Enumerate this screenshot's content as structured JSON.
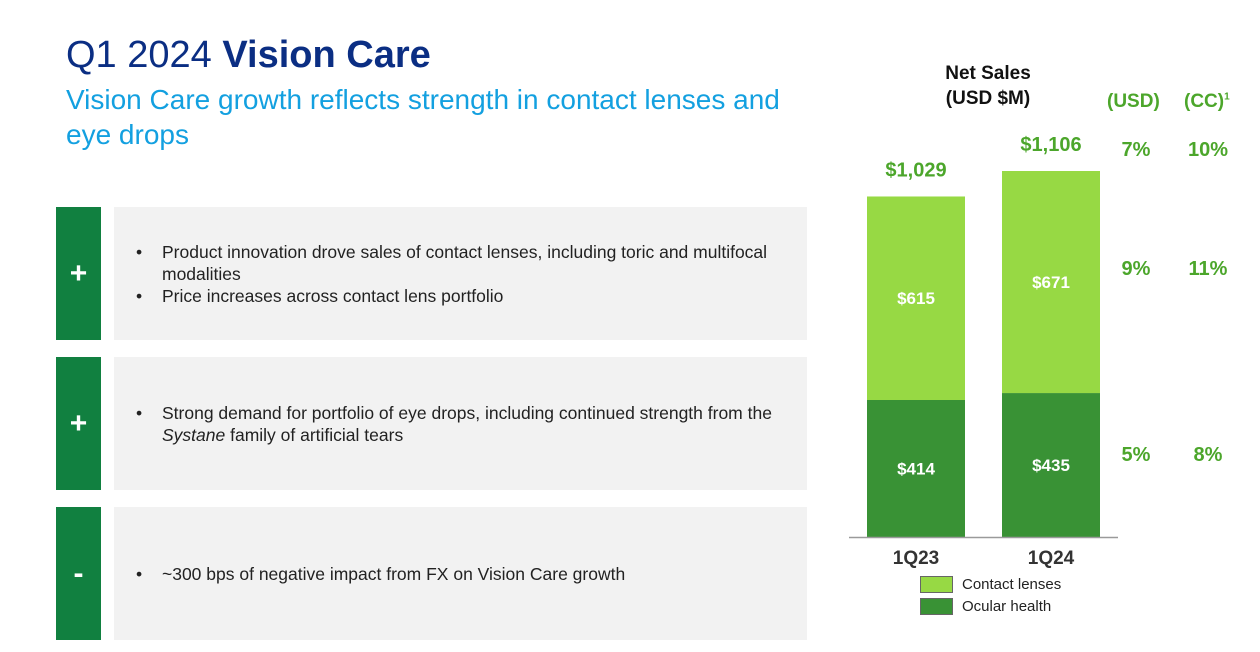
{
  "header": {
    "title_light": "Q1 2024",
    "title_bold": "Vision Care",
    "subtitle": "Vision Care growth reflects strength in contact lenses and eye drops"
  },
  "drivers": [
    {
      "sign": "+",
      "bullets": [
        "Product innovation drove sales of contact lenses, including toric and multifocal modalities",
        "Price increases across contact lens portfolio"
      ]
    },
    {
      "sign": "+",
      "bullets": [
        {
          "pre": "Strong demand for portfolio of eye drops, including continued strength from the ",
          "em": "Systane",
          "post": " family of artificial tears"
        }
      ]
    },
    {
      "sign": "-",
      "bullets": [
        "~300 bps of negative impact from FX on Vision Care growth"
      ]
    }
  ],
  "growth_table": {
    "headers": {
      "usd": "(USD)",
      "cc": "(CC)",
      "cc_footnote": "1"
    },
    "total": {
      "usd": "7%",
      "cc": "10%"
    },
    "contact_lenses": {
      "usd": "9%",
      "cc": "11%"
    },
    "ocular_health": {
      "usd": "5%",
      "cc": "8%"
    }
  },
  "bullet_char": "•",
  "colors": {
    "contact_lenses": "#97d944",
    "ocular_health": "#399235",
    "accent_green": "#4ca62b",
    "title_navy": "#0b2e83",
    "subtitle_blue": "#13a0e0",
    "sign_green": "#118040"
  },
  "chart_data": {
    "type": "bar",
    "stacked": true,
    "title": "Net Sales (USD $M)",
    "title_lines": [
      "Net Sales",
      "(USD $M)"
    ],
    "categories": [
      "1Q23",
      "1Q24"
    ],
    "series": [
      {
        "name": "Ocular health",
        "values": [
          414,
          435
        ],
        "labels": [
          "$414",
          "$435"
        ]
      },
      {
        "name": "Contact lenses",
        "values": [
          615,
          671
        ],
        "labels": [
          "$615",
          "$671"
        ]
      }
    ],
    "totals": [
      1029,
      1106
    ],
    "total_labels": [
      "$1,029",
      "$1,106"
    ],
    "ylim": [
      0,
      1106
    ],
    "legend": {
      "position": "bottom",
      "entries": [
        "Contact lenses",
        "Ocular health"
      ]
    },
    "grid": false
  }
}
